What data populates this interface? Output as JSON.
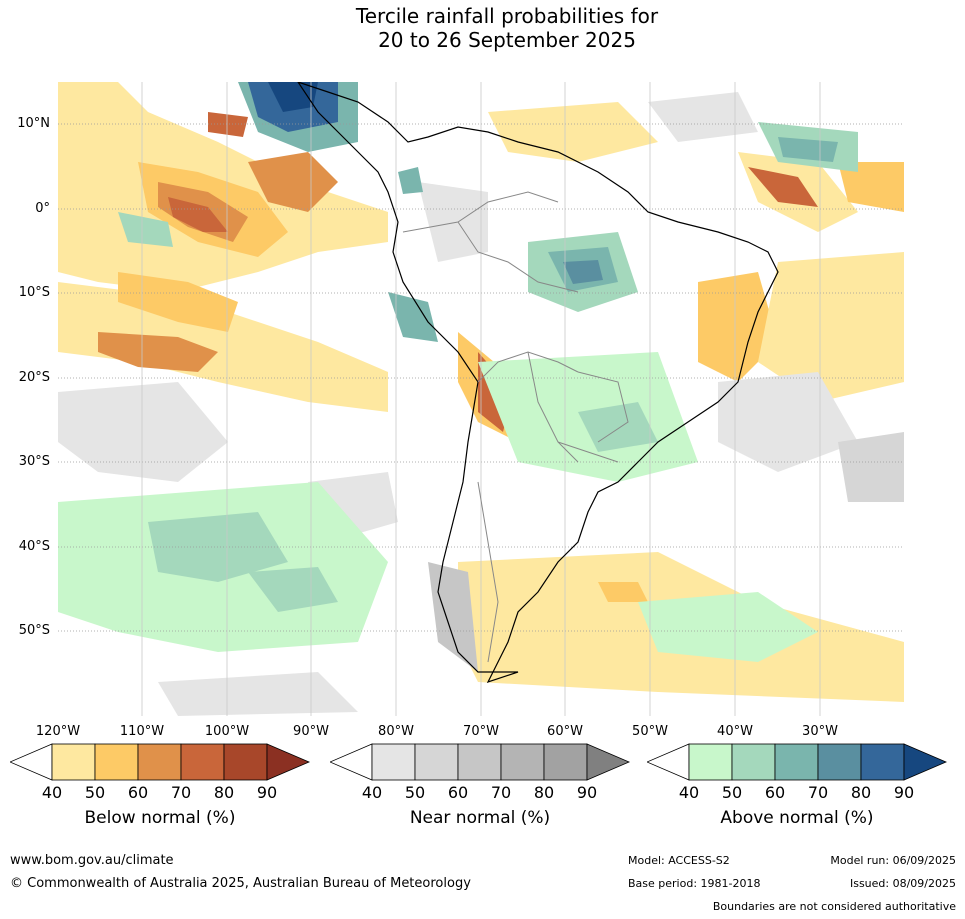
{
  "title_line1": "Tercile rainfall probabilities for",
  "title_line2": "20 to 26 September 2025",
  "lat_labels": [
    "10°N",
    "0°",
    "10°S",
    "20°S",
    "30°S",
    "40°S",
    "50°S"
  ],
  "lon_labels": [
    "120°W",
    "110°W",
    "100°W",
    "90°W",
    "80°W",
    "70°W",
    "60°W",
    "50°W",
    "40°W",
    "30°W"
  ],
  "legends": {
    "below": {
      "title": "Below normal (%)",
      "ticks": [
        "40",
        "50",
        "60",
        "70",
        "80",
        "90"
      ],
      "colors": [
        "#ffffff",
        "#fee8a0",
        "#fdca66",
        "#e0914a",
        "#c9663a",
        "#a8472a",
        "#8b3022"
      ]
    },
    "near": {
      "title": "Near normal (%)",
      "ticks": [
        "40",
        "50",
        "60",
        "70",
        "80",
        "90"
      ],
      "colors": [
        "#ffffff",
        "#e5e5e5",
        "#d6d6d6",
        "#c6c6c6",
        "#b4b4b4",
        "#a2a2a2",
        "#808080"
      ]
    },
    "above": {
      "title": "Above normal (%)",
      "ticks": [
        "40",
        "50",
        "60",
        "70",
        "80",
        "90"
      ],
      "colors": [
        "#ffffff",
        "#c8f7cb",
        "#a4d8bc",
        "#7ab5ad",
        "#5a8fa0",
        "#34679a",
        "#16477f"
      ]
    }
  },
  "footer": {
    "url": "www.bom.gov.au/climate",
    "copyright": "© Commonwealth of Australia 2025, Australian Bureau of Meteorology",
    "model": "Model: ACCESS-S2",
    "base_period": "Base period: 1981-2018",
    "model_run": "Model run: 06/09/2025",
    "issued": "Issued: 08/09/2025",
    "disclaimer": "Boundaries are not considered authoritative"
  }
}
